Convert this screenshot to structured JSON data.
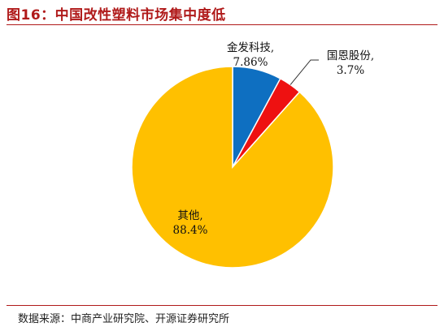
{
  "figure_title": "图16：中国改性塑料市场集中度低",
  "source": "数据来源：中商产业研究院、开源证券研究所",
  "chart_data": {
    "type": "pie",
    "categories": [
      "金发科技",
      "国恩股份",
      "其他"
    ],
    "values": [
      7.86,
      3.7,
      88.4
    ],
    "value_labels": [
      "7.86%",
      "3.7%",
      "88.4%"
    ],
    "name_labels": [
      "金发科技,",
      "国恩股份,",
      "其他,"
    ],
    "colors": [
      "#0e6fc1",
      "#ee1111",
      "#ffc000"
    ],
    "start_angle": "12 o'clock",
    "direction": "clockwise"
  }
}
